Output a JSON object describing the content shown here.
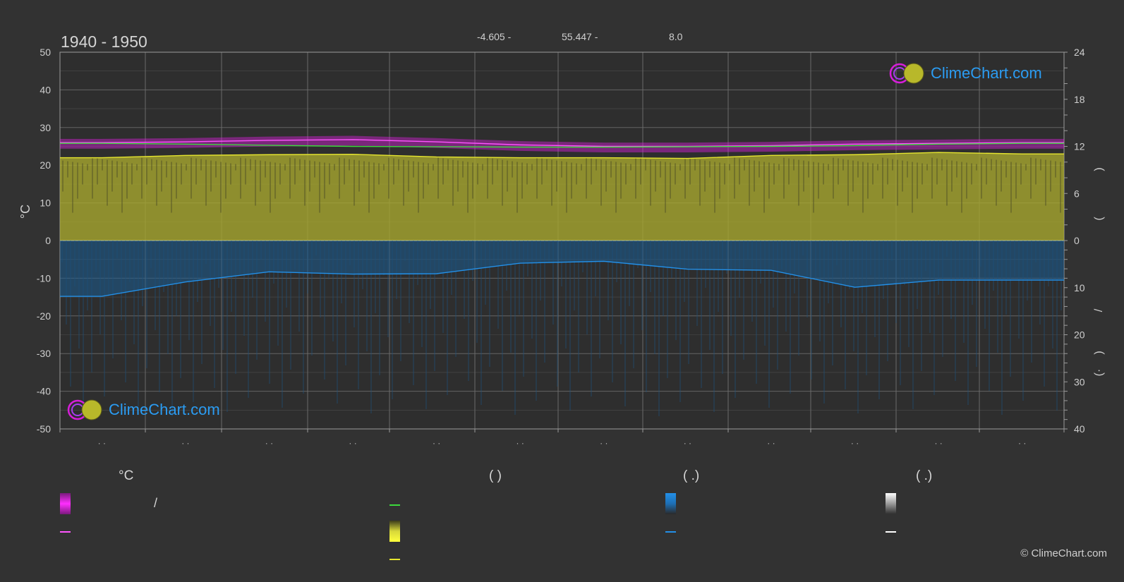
{
  "header": {
    "title": "1940 - 1950",
    "latitude": "-4.605 -",
    "longitude": "55.447 -",
    "elevation": "8.0"
  },
  "axes": {
    "left_unit": "°C",
    "left_ticks": [
      "50",
      "40",
      "30",
      "20",
      "10",
      "0",
      "-10",
      "-20",
      "-30",
      "-40",
      "-50"
    ],
    "right_top_ticks": [
      "24",
      "18",
      "12",
      "6",
      "0"
    ],
    "right_bottom_ticks": [
      "10",
      "20",
      "30",
      "40"
    ],
    "right_labels": [
      ")",
      "(",
      "/",
      ")",
      "(·"
    ],
    "month_labels": [
      "· ·",
      "· ·",
      "· ·",
      "· ·",
      "· ·",
      "· ·",
      "· ·",
      "· ·",
      "· ·",
      "· ·",
      "· ·",
      "· ·"
    ]
  },
  "legend": {
    "col1_head": "°C",
    "col1_slash": "/",
    "col2_head": "(            )",
    "col3_head": "(    .)",
    "col4_head": "(    .)"
  },
  "colors": {
    "background": "#323232",
    "grid": "#6a6a6a",
    "max_temp_band": "#d61ed9",
    "max_temp_line": "#ff55ff",
    "mean_temp_line": "#3cd93c",
    "sunshine_band": "#a9a92e",
    "daylight_line": "#e6e62e",
    "precip_band": "#1b5d92",
    "precip_line": "#2390e8",
    "snow": "#ffffff",
    "logo_text": "#2b9cf2"
  },
  "logo": {
    "text": "ClimeChart.com"
  },
  "copyright": "© ClimeChart.com",
  "chart_data": {
    "type": "area",
    "x": [
      1,
      2,
      3,
      4,
      5,
      6,
      7,
      8,
      9,
      10,
      11,
      12
    ],
    "ylim_left": [
      -50,
      50
    ],
    "ylim_right_top": [
      0,
      24
    ],
    "ylim_right_bottom": [
      40,
      0
    ],
    "grid": true,
    "series": [
      {
        "values": [
          26.0,
          26.2,
          26.6,
          26.8,
          26.2,
          25.4,
          25.0,
          25.0,
          25.2,
          25.6,
          25.8,
          26.0
        ]
      },
      {
        "values": [
          25.8,
          25.6,
          25.3,
          25.0,
          24.9,
          24.8,
          24.8,
          24.9,
          25.0,
          25.2,
          25.6,
          25.8
        ]
      },
      {
        "values": [
          22.0,
          22.6,
          22.8,
          22.9,
          22.2,
          22.0,
          22.0,
          21.8,
          22.6,
          22.8,
          23.4,
          23.0
        ]
      },
      {
        "values": [
          -14.8,
          -11.0,
          -8.3,
          -8.9,
          -8.8,
          -6.0,
          -5.5,
          -7.6,
          -7.9,
          -12.4,
          -10.5,
          -10.5
        ]
      }
    ]
  }
}
